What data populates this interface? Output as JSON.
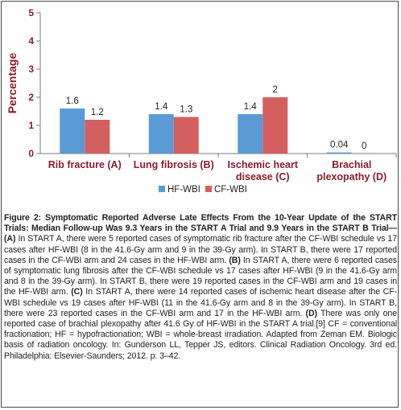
{
  "chart_data": {
    "type": "bar",
    "categories": [
      [
        "Rib fracture (A)"
      ],
      [
        "Lung fibrosis (B)"
      ],
      [
        "Ischemic heart",
        "disease (C)"
      ],
      [
        "Brachial",
        "plexopathy (D)"
      ]
    ],
    "series": [
      {
        "name": "HF-WBI",
        "values": [
          1.6,
          1.4,
          1.4,
          0.04
        ],
        "labels": [
          "1.6",
          "1.4",
          "1.4",
          "0.04"
        ],
        "color": "#5b9bd5"
      },
      {
        "name": "CF-WBI",
        "values": [
          1.2,
          1.3,
          2,
          0
        ],
        "labels": [
          "1.2",
          "1.3",
          "2",
          "0"
        ],
        "color": "#d45f5f"
      }
    ],
    "ylabel": "Percentage",
    "ylim": [
      0,
      5
    ],
    "yticks": [
      "0",
      "1",
      "2",
      "3",
      "4",
      "5"
    ],
    "grid": false,
    "legend_position": "bottom"
  },
  "caption": {
    "title": "Figure 2: Symptomatic Reported Adverse Late Effects From the 10-Year Update of the START Trials: Median Follow-up Was 9.3 Years in the START A Trial and 9.9 Years in the START B Trial—",
    "A_tag": "(A)",
    "A_text": " In START A, there were 5 reported cases of symptomatic rib fracture after the CF-WBI schedule vs 17 cases after HF-WBI (8 in the 41.6-Gy arm and 9 in the 39-Gy arm). In START B, there were 17 reported cases in the CF-WBI arm and 24 cases in the HF-WBI arm. ",
    "B_tag": "(B)",
    "B_text": " In START A, there were 6 reported cases of symptomatic lung fibrosis after the CF-WBI schedule vs 17 cases after HF-WBI (9 in the 41.6-Gy arm and 8 in the 39-Gy arm). In START B, there were 19 reported cases in the CF-WBI arm and 19 cases in the HF-WBI arm. ",
    "C_tag": "(C)",
    "C_text": " In START A, there were 14 reported cases of ischemic heart disease after the CF-WBI schedule vs 19 cases after HF-WBI (11 in the 41.6-Gy arm and 8 in the 39-Gy arm). In START B, there were 23 reported cases in the CF-WBI arm and 17 in the HF-WBI arm. ",
    "D_tag": "(D)",
    "D_text": " There was only one reported case of brachial plexopathy after 41.6 Gy of HF-WBI in the START A trial.[9] CF = conventional fractionation; HF = hypofractionation; WBI = whole-breast irradiation. Adapted from Zeman EM. Biologic basis of radiation oncology. In: Gunderson LL, Tepper JS, editors. Clinical Radiation Oncology. 3rd ed. Philadelphia: Elsevier-Saunders; 2012. p. 3–42."
  }
}
